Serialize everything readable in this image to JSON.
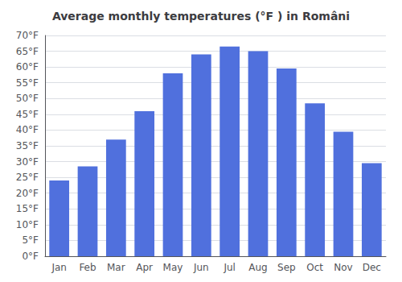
{
  "chart_data": {
    "type": "bar",
    "title": "Average monthly temperatures (°F ) in Români",
    "categories": [
      "Jan",
      "Feb",
      "Mar",
      "Apr",
      "May",
      "Jun",
      "Jul",
      "Aug",
      "Sep",
      "Oct",
      "Nov",
      "Dec"
    ],
    "values": [
      24.0,
      28.5,
      37.0,
      46.0,
      58.0,
      64.0,
      66.5,
      65.0,
      59.5,
      48.5,
      39.5,
      29.5
    ],
    "ylim": [
      0,
      70
    ],
    "yticks": [
      {
        "value": 0,
        "label": "0°F"
      },
      {
        "value": 5,
        "label": "5°F"
      },
      {
        "value": 10,
        "label": "10°F"
      },
      {
        "value": 15,
        "label": "15°F"
      },
      {
        "value": 20,
        "label": "20°F"
      },
      {
        "value": 25,
        "label": "25°F"
      },
      {
        "value": 30,
        "label": "30°F"
      },
      {
        "value": 35,
        "label": "35°F"
      },
      {
        "value": 40,
        "label": "40°F"
      },
      {
        "value": 45,
        "label": "45°F"
      },
      {
        "value": 50,
        "label": "50°F"
      },
      {
        "value": 55,
        "label": "55°F"
      },
      {
        "value": 60,
        "label": "60°F"
      },
      {
        "value": 65,
        "label": "65°F"
      },
      {
        "value": 70,
        "label": "70°F"
      }
    ],
    "grid": true
  }
}
